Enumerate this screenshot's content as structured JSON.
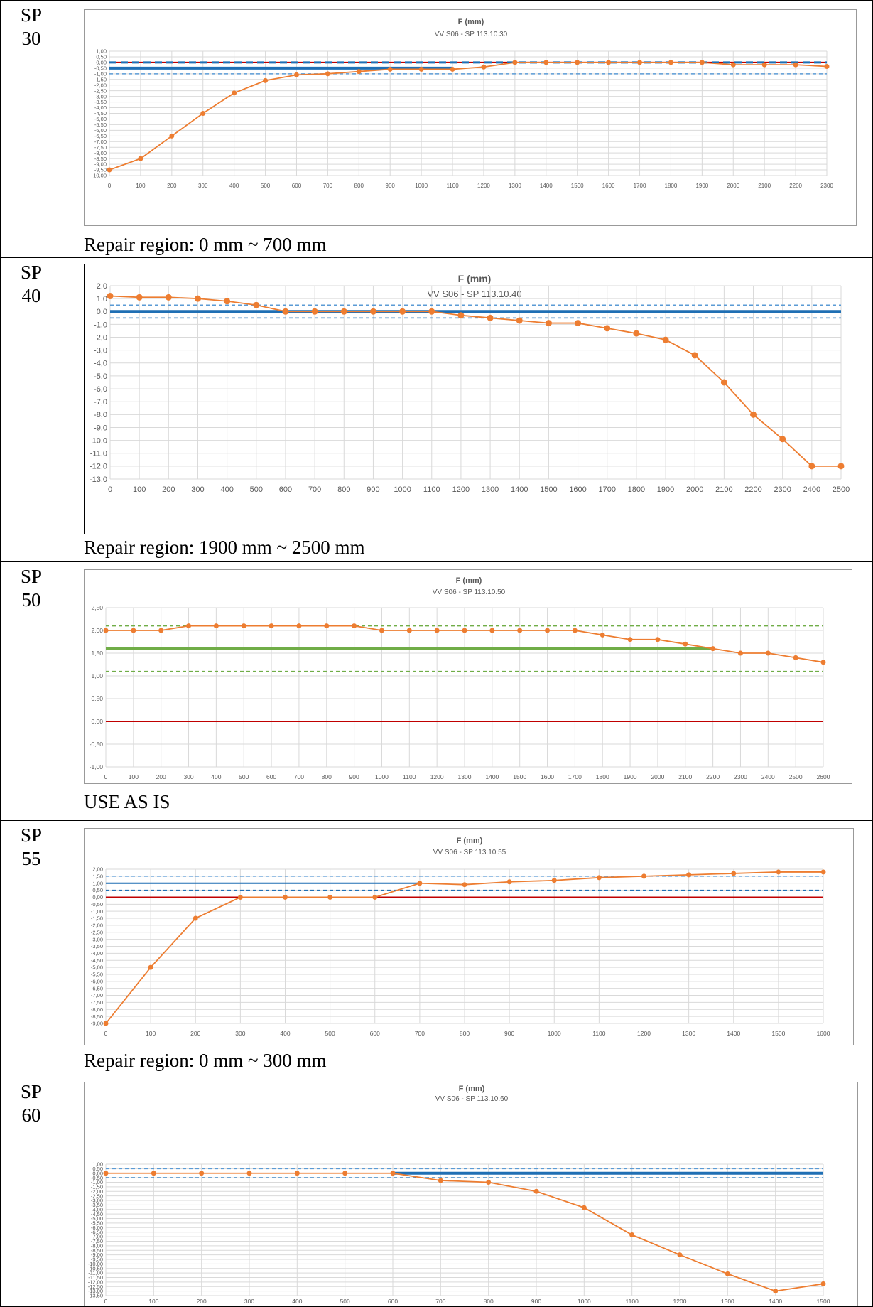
{
  "rows": [
    {
      "label": "SP\n30",
      "note": "Repair region: 0 mm ~ 700 mm",
      "chart": {
        "title": "F (mm)",
        "subtitle": "VV S06 - SP 113.10.30"
      }
    },
    {
      "label": "SP\n40",
      "note": "Repair region: 1900 mm ~ 2500 mm",
      "chart": {
        "title": "F (mm)",
        "subtitle": "VV S06 - SP 113.10.40"
      }
    },
    {
      "label": "SP\n50",
      "note": "USE AS IS",
      "chart": {
        "title": "F (mm)",
        "subtitle": "VV S06 - SP 113.10.50"
      }
    },
    {
      "label": "SP\n55",
      "note": "Repair region: 0 mm ~ 300 mm",
      "chart": {
        "title": "F (mm)",
        "subtitle": "VV S06 - SP 113.10.55"
      }
    },
    {
      "label": "SP\n60",
      "note": "",
      "chart": {
        "title": "F (mm)",
        "subtitle": "VV S06 - SP 113.10.60"
      }
    }
  ],
  "chart_data": [
    {
      "type": "line",
      "title": "F (mm)",
      "subtitle": "VV S06 - SP 113.10.30",
      "xlim": [
        0,
        2300
      ],
      "ylim": [
        -10,
        1
      ],
      "x_ticks": [
        0,
        100,
        200,
        300,
        400,
        500,
        600,
        700,
        800,
        900,
        1000,
        1100,
        1200,
        1300,
        1400,
        1500,
        1600,
        1700,
        1800,
        1900,
        2000,
        2100,
        2200,
        2300
      ],
      "y_ticks": [
        "1,00",
        "0,50",
        "0,00",
        "-0,50",
        "-1,00",
        "-1,50",
        "-2,00",
        "-2,50",
        "-3,00",
        "-3,50",
        "-4,00",
        "-4,50",
        "-5,00",
        "-5,50",
        "-6,00",
        "-6,50",
        "-7,00",
        "-7,50",
        "-8,00",
        "-8,50",
        "-9,00",
        "-9,50",
        "-10,00"
      ],
      "y_tick_values": [
        1,
        0.5,
        0,
        -0.5,
        -1,
        -1.5,
        -2,
        -2.5,
        -3,
        -3.5,
        -4,
        -4.5,
        -5,
        -5.5,
        -6,
        -6.5,
        -7,
        -7.5,
        -8,
        -8.5,
        -9,
        -9.5,
        -10
      ],
      "grid": true,
      "series": [
        {
          "x": [
            0,
            100,
            200,
            300,
            400,
            500,
            600,
            700,
            800,
            900,
            1000,
            1100,
            1200,
            1300,
            1400,
            1500,
            1600,
            1700,
            1800,
            1900,
            2000,
            2100,
            2200,
            2300
          ],
          "values": [
            -9.5,
            -8.5,
            -6.5,
            -4.5,
            -2.7,
            -1.6,
            -1.1,
            -1.0,
            -0.8,
            -0.6,
            -0.6,
            -0.6,
            -0.4,
            0,
            0,
            0,
            0,
            0,
            0,
            0,
            -0.2,
            -0.2,
            -0.2,
            -0.35
          ],
          "color": "#ED7D31",
          "style": "line-marker"
        },
        {
          "x": [
            0,
            2300
          ],
          "values": [
            0,
            0
          ],
          "color": "#C00000",
          "style": "solid"
        },
        {
          "x": [
            0,
            2300
          ],
          "values": [
            0,
            0
          ],
          "color": "#1F6FB4",
          "style": "dashed"
        },
        {
          "x": [
            0,
            2300
          ],
          "values": [
            -1,
            -1
          ],
          "color": "#5B9BD5",
          "style": "dashed-thin"
        },
        {
          "x": [
            0,
            1100
          ],
          "values": [
            -0.5,
            -0.5
          ],
          "color": "#1F6FB4",
          "style": "thick"
        }
      ]
    },
    {
      "type": "line",
      "title": "F (mm)",
      "subtitle": "VV S06 - SP 113.10.40",
      "xlim": [
        0,
        2500
      ],
      "ylim": [
        -13,
        2
      ],
      "x_ticks": [
        0,
        100,
        200,
        300,
        400,
        500,
        600,
        700,
        800,
        900,
        1000,
        1100,
        1200,
        1300,
        1400,
        1500,
        1600,
        1700,
        1800,
        1900,
        2000,
        2100,
        2200,
        2300,
        2400,
        2500
      ],
      "y_ticks": [
        "2,0",
        "1,0",
        "0,0",
        "-1,0",
        "-2,0",
        "-3,0",
        "-4,0",
        "-5,0",
        "-6,0",
        "-7,0",
        "-8,0",
        "-9,0",
        "-10,0",
        "-11,0",
        "-12,0",
        "-13,0"
      ],
      "y_tick_values": [
        2,
        1,
        0,
        -1,
        -2,
        -3,
        -4,
        -5,
        -6,
        -7,
        -8,
        -9,
        -10,
        -11,
        -12,
        -13
      ],
      "grid": true,
      "series": [
        {
          "x": [
            0,
            100,
            200,
            300,
            400,
            500,
            600,
            700,
            800,
            900,
            1000,
            1100,
            1200,
            1300,
            1400,
            1500,
            1600,
            1700,
            1800,
            1900,
            2000,
            2100,
            2200,
            2300,
            2400,
            2500
          ],
          "values": [
            1.2,
            1.1,
            1.1,
            1.0,
            0.8,
            0.5,
            0,
            0,
            0,
            0,
            0,
            0,
            -0.3,
            -0.5,
            -0.7,
            -0.9,
            -0.9,
            -1.3,
            -1.7,
            -2.2,
            -3.4,
            -5.5,
            -8.0,
            -9.9,
            -12.0,
            -12.0
          ],
          "color": "#ED7D31",
          "style": "line-marker"
        },
        {
          "x": [
            0,
            2500
          ],
          "values": [
            0.5,
            0.5
          ],
          "color": "#5B9BD5",
          "style": "dashed-thin"
        },
        {
          "x": [
            0,
            2500
          ],
          "values": [
            0,
            0
          ],
          "color": "#1F6FB4",
          "style": "thick"
        },
        {
          "x": [
            0,
            2500
          ],
          "values": [
            -0.5,
            -0.5
          ],
          "color": "#1F6FB4",
          "style": "dashed-thin"
        }
      ]
    },
    {
      "type": "line",
      "title": "F (mm)",
      "subtitle": "VV S06 - SP 113.10.50",
      "xlim": [
        0,
        2600
      ],
      "ylim": [
        -1,
        2.5
      ],
      "x_ticks": [
        0,
        100,
        200,
        300,
        400,
        500,
        600,
        700,
        800,
        900,
        1000,
        1100,
        1200,
        1300,
        1400,
        1500,
        1600,
        1700,
        1800,
        1900,
        2000,
        2100,
        2200,
        2300,
        2400,
        2500,
        2600
      ],
      "y_ticks": [
        "2,50",
        "2,00",
        "1,50",
        "1,00",
        "0,50",
        "0,00",
        "-0,50",
        "-1,00"
      ],
      "y_tick_values": [
        2.5,
        2,
        1.5,
        1,
        0.5,
        0,
        -0.5,
        -1
      ],
      "grid": true,
      "series": [
        {
          "x": [
            0,
            100,
            200,
            300,
            400,
            500,
            600,
            700,
            800,
            900,
            1000,
            1100,
            1200,
            1300,
            1400,
            1500,
            1600,
            1700,
            1800,
            1900,
            2000,
            2100,
            2200,
            2300,
            2400,
            2500,
            2600
          ],
          "values": [
            2.0,
            2.0,
            2.0,
            2.1,
            2.1,
            2.1,
            2.1,
            2.1,
            2.1,
            2.1,
            2.0,
            2.0,
            2.0,
            2.0,
            2.0,
            2.0,
            2.0,
            2.0,
            1.9,
            1.8,
            1.8,
            1.7,
            1.6,
            1.5,
            1.5,
            1.4,
            1.3
          ],
          "color": "#ED7D31",
          "style": "line-marker"
        },
        {
          "x": [
            0,
            2600
          ],
          "values": [
            2.1,
            2.1
          ],
          "color": "#70AD47",
          "style": "dashed-thin"
        },
        {
          "x": [
            0,
            2200
          ],
          "values": [
            1.6,
            1.6
          ],
          "color": "#70AD47",
          "style": "thick"
        },
        {
          "x": [
            0,
            2600
          ],
          "values": [
            1.1,
            1.1
          ],
          "color": "#70AD47",
          "style": "dashed-thin"
        },
        {
          "x": [
            0,
            2600
          ],
          "values": [
            0,
            0
          ],
          "color": "#C00000",
          "style": "solid"
        }
      ]
    },
    {
      "type": "line",
      "title": "F (mm)",
      "subtitle": "VV S06 - SP 113.10.55",
      "xlim": [
        0,
        1600
      ],
      "ylim": [
        -9,
        2
      ],
      "x_ticks": [
        0,
        100,
        200,
        300,
        400,
        500,
        600,
        700,
        800,
        900,
        1000,
        1100,
        1200,
        1300,
        1400,
        1500,
        1600
      ],
      "y_ticks": [
        "2,00",
        "1,50",
        "1,00",
        "0,50",
        "0,00",
        "-0,50",
        "-1,00",
        "-1,50",
        "-2,00",
        "-2,50",
        "-3,00",
        "-3,50",
        "-4,00",
        "-4,50",
        "-5,00",
        "-5,50",
        "-6,00",
        "-6,50",
        "-7,00",
        "-7,50",
        "-8,00",
        "-8,50",
        "-9,00"
      ],
      "y_tick_values": [
        2,
        1.5,
        1,
        0.5,
        0,
        -0.5,
        -1,
        -1.5,
        -2,
        -2.5,
        -3,
        -3.5,
        -4,
        -4.5,
        -5,
        -5.5,
        -6,
        -6.5,
        -7,
        -7.5,
        -8,
        -8.5,
        -9
      ],
      "grid": true,
      "series": [
        {
          "x": [
            0,
            100,
            200,
            300,
            400,
            500,
            600,
            700,
            800,
            900,
            1000,
            1100,
            1200,
            1300,
            1400,
            1500,
            1600
          ],
          "values": [
            -9.0,
            -5.0,
            -1.5,
            0,
            0,
            0,
            0,
            1.0,
            0.9,
            1.1,
            1.2,
            1.4,
            1.5,
            1.6,
            1.7,
            1.8,
            1.8
          ],
          "color": "#ED7D31",
          "style": "line-marker"
        },
        {
          "x": [
            0,
            1600
          ],
          "values": [
            1.5,
            1.5
          ],
          "color": "#5B9BD5",
          "style": "dashed-thin"
        },
        {
          "x": [
            0,
            700
          ],
          "values": [
            1.0,
            1.0
          ],
          "color": "#1F6FB4",
          "style": "solid"
        },
        {
          "x": [
            0,
            1600
          ],
          "values": [
            0.5,
            0.5
          ],
          "color": "#1F6FB4",
          "style": "dashed-thin"
        },
        {
          "x": [
            0,
            1600
          ],
          "values": [
            0,
            0
          ],
          "color": "#C00000",
          "style": "solid"
        }
      ]
    },
    {
      "type": "line",
      "title": "F (mm)",
      "subtitle": "VV S06 - SP 113.10.60",
      "xlim": [
        0,
        1500
      ],
      "ylim": [
        -13.5,
        1
      ],
      "x_ticks": [
        0,
        100,
        200,
        300,
        400,
        500,
        600,
        700,
        800,
        900,
        1000,
        1100,
        1200,
        1300,
        1400,
        1500
      ],
      "y_ticks": [
        "1,00",
        "0,50",
        "0,00",
        "-0,50",
        "-1,00",
        "-1,50",
        "-2,00",
        "-2,50",
        "-3,00",
        "-3,50",
        "-4,00",
        "-4,50",
        "-5,00",
        "-5,50",
        "-6,00",
        "-6,50",
        "-7,00",
        "-7,50",
        "-8,00",
        "-8,50",
        "-9,00",
        "-9,50",
        "-10,00",
        "-10,50",
        "-11,00",
        "-11,50",
        "-12,00",
        "-12,50",
        "-13,00",
        "-13,50"
      ],
      "y_tick_values": [
        1,
        0.5,
        0,
        -0.5,
        -1,
        -1.5,
        -2,
        -2.5,
        -3,
        -3.5,
        -4,
        -4.5,
        -5,
        -5.5,
        -6,
        -6.5,
        -7,
        -7.5,
        -8,
        -8.5,
        -9,
        -9.5,
        -10,
        -10.5,
        -11,
        -11.5,
        -12,
        -12.5,
        -13,
        -13.5
      ],
      "grid": true,
      "series": [
        {
          "x": [
            0,
            100,
            200,
            300,
            400,
            500,
            600,
            700,
            800,
            900,
            1000,
            1100,
            1200,
            1300,
            1400,
            1500
          ],
          "values": [
            0,
            0,
            0,
            0,
            0,
            0,
            0,
            -0.8,
            -1.0,
            -2.0,
            -3.8,
            -6.8,
            -9.0,
            -11.1,
            -13.0,
            -12.2
          ],
          "color": "#ED7D31",
          "style": "line-marker"
        },
        {
          "x": [
            0,
            1500
          ],
          "values": [
            0.5,
            0.5
          ],
          "color": "#5B9BD5",
          "style": "dashed-thin"
        },
        {
          "x": [
            600,
            1500
          ],
          "values": [
            0,
            0
          ],
          "color": "#1F6FB4",
          "style": "thick"
        },
        {
          "x": [
            0,
            1500
          ],
          "values": [
            -0.5,
            -0.5
          ],
          "color": "#1F6FB4",
          "style": "dashed-thin"
        }
      ]
    }
  ]
}
